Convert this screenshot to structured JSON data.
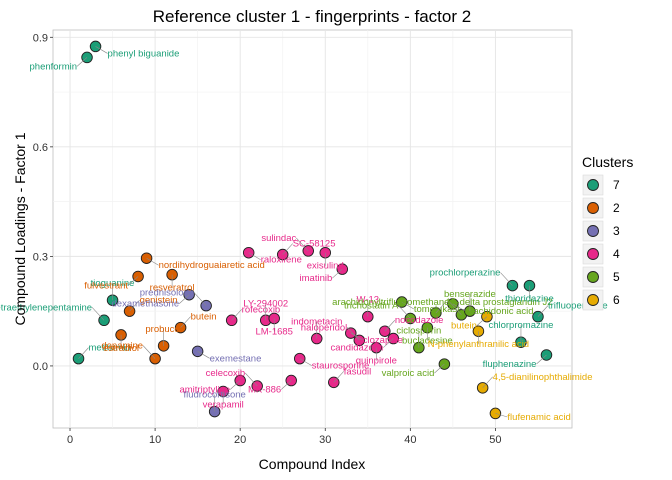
{
  "chart_data": {
    "type": "scatter",
    "title": "Reference cluster 1 - fingerprints - factor 2",
    "xlabel": "Compound Index",
    "ylabel": "Compound Loadings - Factor 1",
    "xlim": [
      -2,
      59
    ],
    "ylim": [
      -0.17,
      0.92
    ],
    "xticks": [
      0,
      10,
      20,
      30,
      40,
      50
    ],
    "yticks": [
      0.0,
      0.3,
      0.6,
      0.9
    ],
    "ytick_labels": [
      "0.0",
      "0.3",
      "0.6",
      "0.9"
    ],
    "grid": true,
    "legend_position": "right",
    "legend_title": "Clusters",
    "legend": [
      {
        "label": "7",
        "color": "#1b9e77"
      },
      {
        "label": "2",
        "color": "#d95f02"
      },
      {
        "label": "3",
        "color": "#7570b3"
      },
      {
        "label": "4",
        "color": "#e7298a"
      },
      {
        "label": "5",
        "color": "#66a61e"
      },
      {
        "label": "6",
        "color": "#e6ab02"
      }
    ],
    "points": [
      {
        "x": 1,
        "y": 0.02,
        "cluster": "7",
        "label": "metformin"
      },
      {
        "x": 2,
        "y": 0.845,
        "cluster": "7",
        "label": "phenformin"
      },
      {
        "x": 3,
        "y": 0.875,
        "cluster": "7",
        "label": "phenyl biguanide"
      },
      {
        "x": 4,
        "y": 0.125,
        "cluster": "7",
        "label": "tetraethylenepentamine"
      },
      {
        "x": 5,
        "y": 0.18,
        "cluster": "7",
        "label": "tioguanine"
      },
      {
        "x": 6,
        "y": 0.085,
        "cluster": "2",
        "label": "estradiol"
      },
      {
        "x": 7,
        "y": 0.15,
        "cluster": "2",
        "label": "genistein"
      },
      {
        "x": 8,
        "y": 0.245,
        "cluster": "2",
        "label": "fulvestrant"
      },
      {
        "x": 9,
        "y": 0.295,
        "cluster": "2",
        "label": "nordihydroguaiaretic acid"
      },
      {
        "x": 10,
        "y": 0.02,
        "cluster": "2",
        "label": "dopamine"
      },
      {
        "x": 11,
        "y": 0.055,
        "cluster": "2",
        "label": "probucol"
      },
      {
        "x": 12,
        "y": 0.25,
        "cluster": "2",
        "label": "resveratrol"
      },
      {
        "x": 13,
        "y": 0.105,
        "cluster": "2",
        "label": "butein"
      },
      {
        "x": 14,
        "y": 0.195,
        "cluster": "3",
        "label": "dexamethasone"
      },
      {
        "x": 15,
        "y": 0.04,
        "cluster": "3",
        "label": "exemestane"
      },
      {
        "x": 16,
        "y": 0.165,
        "cluster": "3",
        "label": "prednisolone"
      },
      {
        "x": 17,
        "y": -0.125,
        "cluster": "3",
        "label": "fludrocortisone"
      },
      {
        "x": 18,
        "y": -0.07,
        "cluster": "4",
        "label": "verapamil"
      },
      {
        "x": 19,
        "y": 0.125,
        "cluster": "4",
        "label": "rofecoxib"
      },
      {
        "x": 20,
        "y": -0.04,
        "cluster": "4",
        "label": "amitriptyline"
      },
      {
        "x": 21,
        "y": 0.31,
        "cluster": "4",
        "label": "raloxifene"
      },
      {
        "x": 22,
        "y": -0.055,
        "cluster": "4",
        "label": "celecoxib"
      },
      {
        "x": 23,
        "y": 0.125,
        "cluster": "4",
        "label": "LY-294002"
      },
      {
        "x": 24,
        "y": 0.13,
        "cluster": "4",
        "label": "LM-1685"
      },
      {
        "x": 25,
        "y": 0.305,
        "cluster": "4",
        "label": "SC-58125"
      },
      {
        "x": 26,
        "y": -0.04,
        "cluster": "4",
        "label": "MK-886"
      },
      {
        "x": 27,
        "y": 0.02,
        "cluster": "4",
        "label": "staurosporine"
      },
      {
        "x": 28,
        "y": 0.315,
        "cluster": "4",
        "label": "sulindac"
      },
      {
        "x": 29,
        "y": 0.075,
        "cluster": "4",
        "label": "indometacin"
      },
      {
        "x": 30,
        "y": 0.31,
        "cluster": "4",
        "label": "exisulind"
      },
      {
        "x": 31,
        "y": -0.045,
        "cluster": "4",
        "label": "fasudil"
      },
      {
        "x": 32,
        "y": 0.265,
        "cluster": "4",
        "label": "imatinib"
      },
      {
        "x": 33,
        "y": 0.09,
        "cluster": "4",
        "label": "clozapine"
      },
      {
        "x": 34,
        "y": 0.07,
        "cluster": "4",
        "label": "haloperidol"
      },
      {
        "x": 35,
        "y": 0.135,
        "cluster": "4",
        "label": "W-13"
      },
      {
        "x": 36,
        "y": 0.05,
        "cluster": "4",
        "label": "quinpirole"
      },
      {
        "x": 37,
        "y": 0.095,
        "cluster": "4",
        "label": "nocodazole"
      },
      {
        "x": 38,
        "y": 0.075,
        "cluster": "4",
        "label": "candidazolin"
      },
      {
        "x": 39,
        "y": 0.175,
        "cluster": "5",
        "label": "tomelukast"
      },
      {
        "x": 40,
        "y": 0.13,
        "cluster": "5",
        "label": "trichostatin A"
      },
      {
        "x": 41,
        "y": 0.05,
        "cluster": "5",
        "label": "ciclosporin"
      },
      {
        "x": 42,
        "y": 0.105,
        "cluster": "5",
        "label": "bucladesine"
      },
      {
        "x": 43,
        "y": 0.145,
        "cluster": "5",
        "label": "15-delta prostaglandin J2"
      },
      {
        "x": 44,
        "y": 0.005,
        "cluster": "5",
        "label": "valproic acid"
      },
      {
        "x": 45,
        "y": 0.17,
        "cluster": "5",
        "label": "arachidonic acid"
      },
      {
        "x": 46,
        "y": 0.14,
        "cluster": "5",
        "label": "arachidonyltrifluoromethane"
      },
      {
        "x": 47,
        "y": 0.15,
        "cluster": "5",
        "label": "benserazide"
      },
      {
        "x": 48,
        "y": 0.095,
        "cluster": "6",
        "label": "N-phenylanthranilic acid"
      },
      {
        "x": 48.5,
        "y": -0.06,
        "cluster": "6",
        "label": "4,5-dianilinophthalimide"
      },
      {
        "x": 49,
        "y": 0.135,
        "cluster": "6",
        "label": "butein"
      },
      {
        "x": 50,
        "y": -0.13,
        "cluster": "6",
        "label": "flufenamic acid"
      },
      {
        "x": 52,
        "y": 0.22,
        "cluster": "7",
        "label": "prochlorperazine"
      },
      {
        "x": 53,
        "y": 0.065,
        "cluster": "7",
        "label": "chlorpromazine"
      },
      {
        "x": 54,
        "y": 0.22,
        "cluster": "7",
        "label": "thioridazine"
      },
      {
        "x": 55,
        "y": 0.135,
        "cluster": "7",
        "label": "trifluoperazine"
      },
      {
        "x": 56,
        "y": 0.03,
        "cluster": "7",
        "label": "fluphenazine"
      }
    ]
  }
}
